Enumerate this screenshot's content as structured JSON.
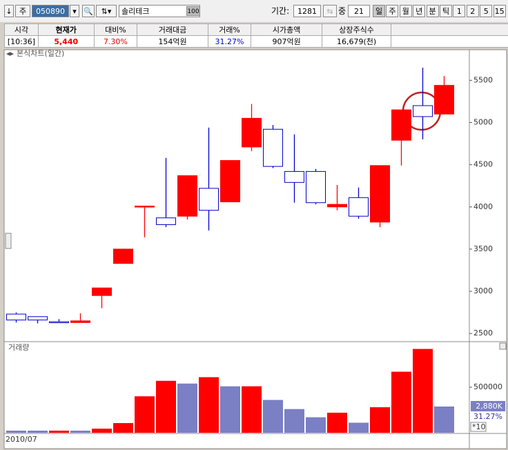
{
  "toolbar": {
    "arrow": "↓",
    "kind": "주",
    "code": "050890",
    "name": "솔리테크",
    "ratio_tag": "100",
    "period_label": "기간:",
    "period": "1281",
    "middle_label": "중",
    "middle": "21",
    "buttons": [
      "일",
      "주",
      "월",
      "년",
      "분",
      "틱",
      "1",
      "2",
      "5",
      "15"
    ]
  },
  "info_table": {
    "headers": [
      "시각",
      "현재가",
      "대비%",
      "거래대금",
      "거래%",
      "시가총액",
      "상장주식수"
    ],
    "values": [
      "[10:36]",
      "5,440",
      "7.30%",
      "154억원",
      "31.27%",
      "907억원",
      "16,679(천)"
    ]
  },
  "chart_data": [
    {
      "type": "candlestick",
      "title": "본식차트(일간)",
      "categories": [
        "2010/07",
        null,
        null,
        null,
        null,
        null,
        null,
        null,
        null,
        null,
        null,
        null,
        null,
        null,
        null,
        null,
        null,
        null,
        null,
        null,
        null
      ],
      "open": [
        2730,
        2700,
        2640,
        2630,
        2950,
        3330,
        4000,
        3870,
        3890,
        4220,
        4060,
        4710,
        4920,
        4420,
        4420,
        4000,
        4110,
        3820,
        4790,
        5200,
        5100
      ],
      "high": [
        2750,
        2700,
        2670,
        2740,
        3040,
        3500,
        4010,
        4580,
        4370,
        4940,
        4550,
        5220,
        4970,
        4860,
        4450,
        4260,
        4230,
        4490,
        5150,
        5650,
        5550
      ],
      "low": [
        2630,
        2620,
        2630,
        2630,
        2800,
        3330,
        3640,
        3760,
        3850,
        3720,
        4060,
        4660,
        4460,
        4050,
        4030,
        3960,
        3860,
        3760,
        4490,
        4800,
        5100
      ],
      "close": [
        2660,
        2660,
        2630,
        2650,
        3040,
        3500,
        4010,
        3790,
        4370,
        3960,
        4550,
        5050,
        4480,
        4290,
        4050,
        4030,
        3890,
        4490,
        5150,
        5070,
        5440
      ],
      "up_color": "#ff0000",
      "down_color": "#0000cc",
      "ylim": [
        2420,
        5740
      ],
      "yticks": [
        2500,
        3000,
        3500,
        4000,
        4500,
        5000,
        5500
      ]
    },
    {
      "type": "bar",
      "title": "거래량",
      "values": [
        23000,
        23000,
        23000,
        23000,
        45000,
        106000,
        400000,
        570000,
        540000,
        610000,
        510000,
        510000,
        360000,
        260000,
        170000,
        220000,
        110000,
        280000,
        670000,
        920000,
        288000
      ],
      "colors": [
        "#7b7fc4",
        "#7b7fc4",
        "#ff0000",
        "#7b7fc4",
        "#ff0000",
        "#ff0000",
        "#ff0000",
        "#ff0000",
        "#7b7fc4",
        "#ff0000",
        "#7b7fc4",
        "#ff0000",
        "#7b7fc4",
        "#7b7fc4",
        "#7b7fc4",
        "#ff0000",
        "#7b7fc4",
        "#ff0000",
        "#ff0000",
        "#ff0000",
        "#7b7fc4"
      ],
      "ylim": [
        0,
        985000
      ],
      "yticks": [
        500000
      ],
      "marker_label": "2,880K",
      "marker_percent": "31.27%",
      "multiplier": "*10"
    }
  ]
}
